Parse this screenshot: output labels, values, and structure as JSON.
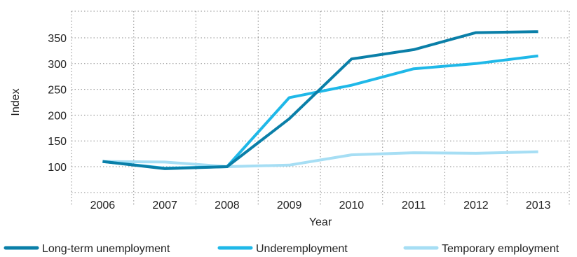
{
  "chart_data": {
    "type": "line",
    "xlabel": "Year",
    "ylabel": "Index",
    "categories": [
      "2006",
      "2007",
      "2008",
      "2009",
      "2010",
      "2011",
      "2012",
      "2013"
    ],
    "yticks": [
      100,
      150,
      200,
      250,
      300,
      350
    ],
    "ylim": [
      50,
      400
    ],
    "grid": true,
    "legend_position": "bottom",
    "series": [
      {
        "name": "Long-term unemployment",
        "color": "#0a7fa8",
        "values": [
          110,
          96,
          100,
          193,
          309,
          327,
          360,
          362
        ]
      },
      {
        "name": "Underemployment",
        "color": "#1fb8e8",
        "values": [
          110,
          97,
          100,
          234,
          258,
          290,
          300,
          315
        ]
      },
      {
        "name": "Temporary employment",
        "color": "#a6def4",
        "values": [
          110,
          109,
          100,
          103,
          123,
          127,
          126,
          129
        ]
      }
    ]
  }
}
